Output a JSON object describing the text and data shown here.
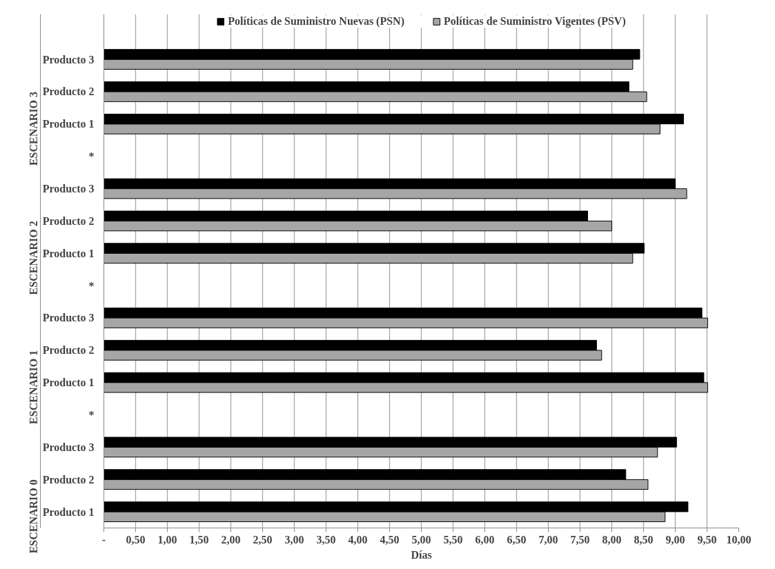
{
  "chart_data": {
    "type": "bar",
    "orientation": "horizontal",
    "categories": [
      "Producto 3",
      "Producto 2",
      "Producto 1",
      "*",
      "Producto 3",
      "Producto 2",
      "Producto 1",
      "*",
      "Producto 3",
      "Producto 2",
      "Producto 1",
      "*",
      "Producto 3",
      "Producto 2",
      "Producto 1"
    ],
    "series": [
      {
        "name": "Políticas de Suministro Nuevas (PSN)",
        "color": "#000000",
        "values": [
          8.44,
          8.27,
          9.13,
          null,
          9.0,
          7.62,
          8.51,
          null,
          9.42,
          7.76,
          9.45,
          null,
          9.02,
          8.22,
          9.2
        ]
      },
      {
        "name": "Políticas de Suministro Vigentes (PSV)",
        "color": "#a6a6a6",
        "values": [
          8.33,
          8.55,
          8.76,
          null,
          9.18,
          8.0,
          8.33,
          null,
          9.51,
          7.84,
          9.51,
          null,
          8.72,
          8.57,
          8.84
        ]
      }
    ],
    "annotations": [
      "ESCENARIO 3",
      "ESCENARIO 2",
      "ESCENARIO 1",
      "ESCENARIO 0"
    ],
    "xlabel": "Días",
    "xlim": [
      0,
      10
    ],
    "xticks": [
      {
        "value": 0,
        "label": "-"
      },
      {
        "value": 0.5,
        "label": "0,50"
      },
      {
        "value": 1,
        "label": "1,00"
      },
      {
        "value": 1.5,
        "label": "1,50"
      },
      {
        "value": 2,
        "label": "2,00"
      },
      {
        "value": 2.5,
        "label": "2,50"
      },
      {
        "value": 3,
        "label": "3,00"
      },
      {
        "value": 3.5,
        "label": "3,50"
      },
      {
        "value": 4,
        "label": "4,00"
      },
      {
        "value": 4.5,
        "label": "4,50"
      },
      {
        "value": 5,
        "label": "5,00"
      },
      {
        "value": 5.5,
        "label": "5,50"
      },
      {
        "value": 6,
        "label": "6,00"
      },
      {
        "value": 6.5,
        "label": "6,50"
      },
      {
        "value": 7,
        "label": "7,00"
      },
      {
        "value": 7.5,
        "label": "7,50"
      },
      {
        "value": 8,
        "label": "8,00"
      },
      {
        "value": 8.5,
        "label": "8,50"
      },
      {
        "value": 9,
        "label": "9,00"
      },
      {
        "value": 9.5,
        "label": "9,50"
      },
      {
        "value": 10,
        "label": "10,00"
      }
    ],
    "grid": "x",
    "legend": "top"
  }
}
